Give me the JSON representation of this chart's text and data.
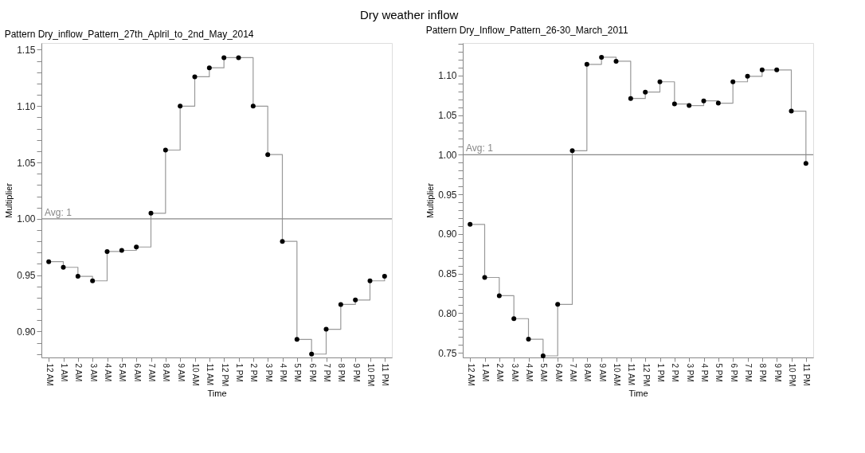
{
  "chart_data": [
    {
      "type": "step",
      "title": "Pattern Dry_inflow_Pattern_27th_Aplril_to_2nd_May_2014",
      "annotations": [
        "Dry weather inflow"
      ],
      "xlabel": "Time",
      "ylabel": "Multiplier",
      "categories": [
        "12 AM",
        "1 AM",
        "2 AM",
        "3 AM",
        "4 AM",
        "5 AM",
        "6 AM",
        "7 AM",
        "8 AM",
        "9 AM",
        "10 AM",
        "11 AM",
        "12 PM",
        "1 PM",
        "2 PM",
        "3 PM",
        "4 PM",
        "5 PM",
        "6 PM",
        "7 PM",
        "8 PM",
        "9 PM",
        "10 PM",
        "11 PM"
      ],
      "values": [
        0.962,
        0.957,
        0.949,
        0.945,
        0.971,
        0.972,
        0.975,
        1.005,
        1.061,
        1.1,
        1.126,
        1.134,
        1.143,
        1.143,
        1.1,
        1.057,
        0.98,
        0.893,
        0.88,
        0.902,
        0.924,
        0.928,
        0.945,
        0.949
      ],
      "color": "#999999",
      "marker": "circle",
      "grid": false,
      "ylim": [
        0.877,
        1.156
      ],
      "yticks": [
        {
          "value": 0.88,
          "label": null
        },
        {
          "value": 0.89,
          "label": null
        },
        {
          "value": 0.9,
          "label": "0.90"
        },
        {
          "value": 0.91,
          "label": null
        },
        {
          "value": 0.92,
          "label": null
        },
        {
          "value": 0.93,
          "label": null
        },
        {
          "value": 0.94,
          "label": null
        },
        {
          "value": 0.95,
          "label": "0.95"
        },
        {
          "value": 0.96,
          "label": null
        },
        {
          "value": 0.97,
          "label": null
        },
        {
          "value": 0.98,
          "label": null
        },
        {
          "value": 0.99,
          "label": null
        },
        {
          "value": 1.0,
          "label": "1.00"
        },
        {
          "value": 1.01,
          "label": null
        },
        {
          "value": 1.02,
          "label": null
        },
        {
          "value": 1.03,
          "label": null
        },
        {
          "value": 1.04,
          "label": null
        },
        {
          "value": 1.05,
          "label": "1.05"
        },
        {
          "value": 1.06,
          "label": null
        },
        {
          "value": 1.07,
          "label": null
        },
        {
          "value": 1.08,
          "label": null
        },
        {
          "value": 1.09,
          "label": null
        },
        {
          "value": 1.1,
          "label": "1.10"
        },
        {
          "value": 1.11,
          "label": null
        },
        {
          "value": 1.12,
          "label": null
        },
        {
          "value": 1.13,
          "label": null
        },
        {
          "value": 1.14,
          "label": null
        },
        {
          "value": 1.15,
          "label": "1.15"
        }
      ],
      "ref_lines": [
        {
          "axis": "y",
          "value": 1,
          "label": "Avg: 1",
          "color": "#888888"
        }
      ]
    },
    {
      "type": "step",
      "title": "Pattern Dry_Inflow_Pattern_26-30_March_2011",
      "xlabel": "Time",
      "ylabel": "Multiplier",
      "categories": [
        "12 AM",
        "1 AM",
        "2 AM",
        "3 AM",
        "4 AM",
        "5 AM",
        "6 AM",
        "7 AM",
        "8 AM",
        "9 AM",
        "10 AM",
        "11 AM",
        "12 PM",
        "1 PM",
        "2 PM",
        "3 PM",
        "4 PM",
        "5 PM",
        "6 PM",
        "7 PM",
        "8 PM",
        "9 PM",
        "10 PM",
        "11 PM"
      ],
      "values": [
        0.912,
        0.845,
        0.822,
        0.793,
        0.767,
        0.746,
        0.811,
        1.005,
        1.114,
        1.123,
        1.118,
        1.071,
        1.079,
        1.092,
        1.064,
        1.062,
        1.068,
        1.065,
        1.092,
        1.099,
        1.107,
        1.107,
        1.055,
        0.989
      ],
      "color": "#999999",
      "marker": "circle",
      "grid": false,
      "ylim": [
        0.744,
        1.141
      ],
      "yticks": [
        {
          "value": 0.75,
          "label": "0.75"
        },
        {
          "value": 0.76,
          "label": null
        },
        {
          "value": 0.77,
          "label": null
        },
        {
          "value": 0.78,
          "label": null
        },
        {
          "value": 0.79,
          "label": null
        },
        {
          "value": 0.8,
          "label": "0.80"
        },
        {
          "value": 0.81,
          "label": null
        },
        {
          "value": 0.82,
          "label": null
        },
        {
          "value": 0.83,
          "label": null
        },
        {
          "value": 0.84,
          "label": null
        },
        {
          "value": 0.85,
          "label": "0.85"
        },
        {
          "value": 0.86,
          "label": null
        },
        {
          "value": 0.87,
          "label": null
        },
        {
          "value": 0.88,
          "label": null
        },
        {
          "value": 0.89,
          "label": null
        },
        {
          "value": 0.9,
          "label": "0.90"
        },
        {
          "value": 0.91,
          "label": null
        },
        {
          "value": 0.92,
          "label": null
        },
        {
          "value": 0.93,
          "label": null
        },
        {
          "value": 0.94,
          "label": null
        },
        {
          "value": 0.95,
          "label": "0.95"
        },
        {
          "value": 0.96,
          "label": null
        },
        {
          "value": 0.97,
          "label": null
        },
        {
          "value": 0.98,
          "label": null
        },
        {
          "value": 0.99,
          "label": null
        },
        {
          "value": 1.0,
          "label": "1.00"
        },
        {
          "value": 1.01,
          "label": null
        },
        {
          "value": 1.02,
          "label": null
        },
        {
          "value": 1.03,
          "label": null
        },
        {
          "value": 1.04,
          "label": null
        },
        {
          "value": 1.05,
          "label": "1.05"
        },
        {
          "value": 1.06,
          "label": null
        },
        {
          "value": 1.07,
          "label": null
        },
        {
          "value": 1.08,
          "label": null
        },
        {
          "value": 1.09,
          "label": null
        },
        {
          "value": 1.1,
          "label": "1.10"
        },
        {
          "value": 1.11,
          "label": null
        },
        {
          "value": 1.12,
          "label": null
        },
        {
          "value": 1.13,
          "label": null
        },
        {
          "value": 1.14,
          "label": null
        }
      ],
      "ref_lines": [
        {
          "axis": "y",
          "value": 1,
          "label": "Avg: 1",
          "color": "#888888"
        }
      ]
    }
  ]
}
